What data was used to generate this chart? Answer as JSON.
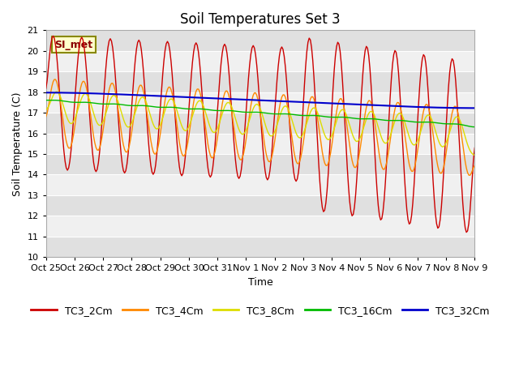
{
  "title": "Soil Temperatures Set 3",
  "ylabel": "Soil Temperature (C)",
  "xlabel": "Time",
  "ylim": [
    10.0,
    21.0
  ],
  "yticks": [
    10.0,
    11.0,
    12.0,
    13.0,
    14.0,
    15.0,
    16.0,
    17.0,
    18.0,
    19.0,
    20.0,
    21.0
  ],
  "colors": {
    "TC3_2Cm": "#cc0000",
    "TC3_4Cm": "#ff8800",
    "TC3_8Cm": "#dddd00",
    "TC3_16Cm": "#00bb00",
    "TC3_32Cm": "#0000cc"
  },
  "legend_labels": [
    "TC3_2Cm",
    "TC3_4Cm",
    "TC3_8Cm",
    "TC3_16Cm",
    "TC3_32Cm"
  ],
  "xtick_labels": [
    "Oct 25",
    "Oct 26",
    "Oct 27",
    "Oct 28",
    "Oct 29",
    "Oct 30",
    "Oct 31",
    "Nov 1",
    "Nov 2",
    "Nov 3",
    "Nov 4",
    "Nov 5",
    "Nov 6",
    "Nov 7",
    "Nov 8",
    "Nov 9"
  ],
  "annotation_text": "SI_met",
  "fig_bg": "#ffffff",
  "plot_bg": "#f0f0f0",
  "band_color1": "#f0f0f0",
  "band_color2": "#e0e0e0",
  "title_fontsize": 12,
  "axis_fontsize": 9,
  "tick_fontsize": 8
}
